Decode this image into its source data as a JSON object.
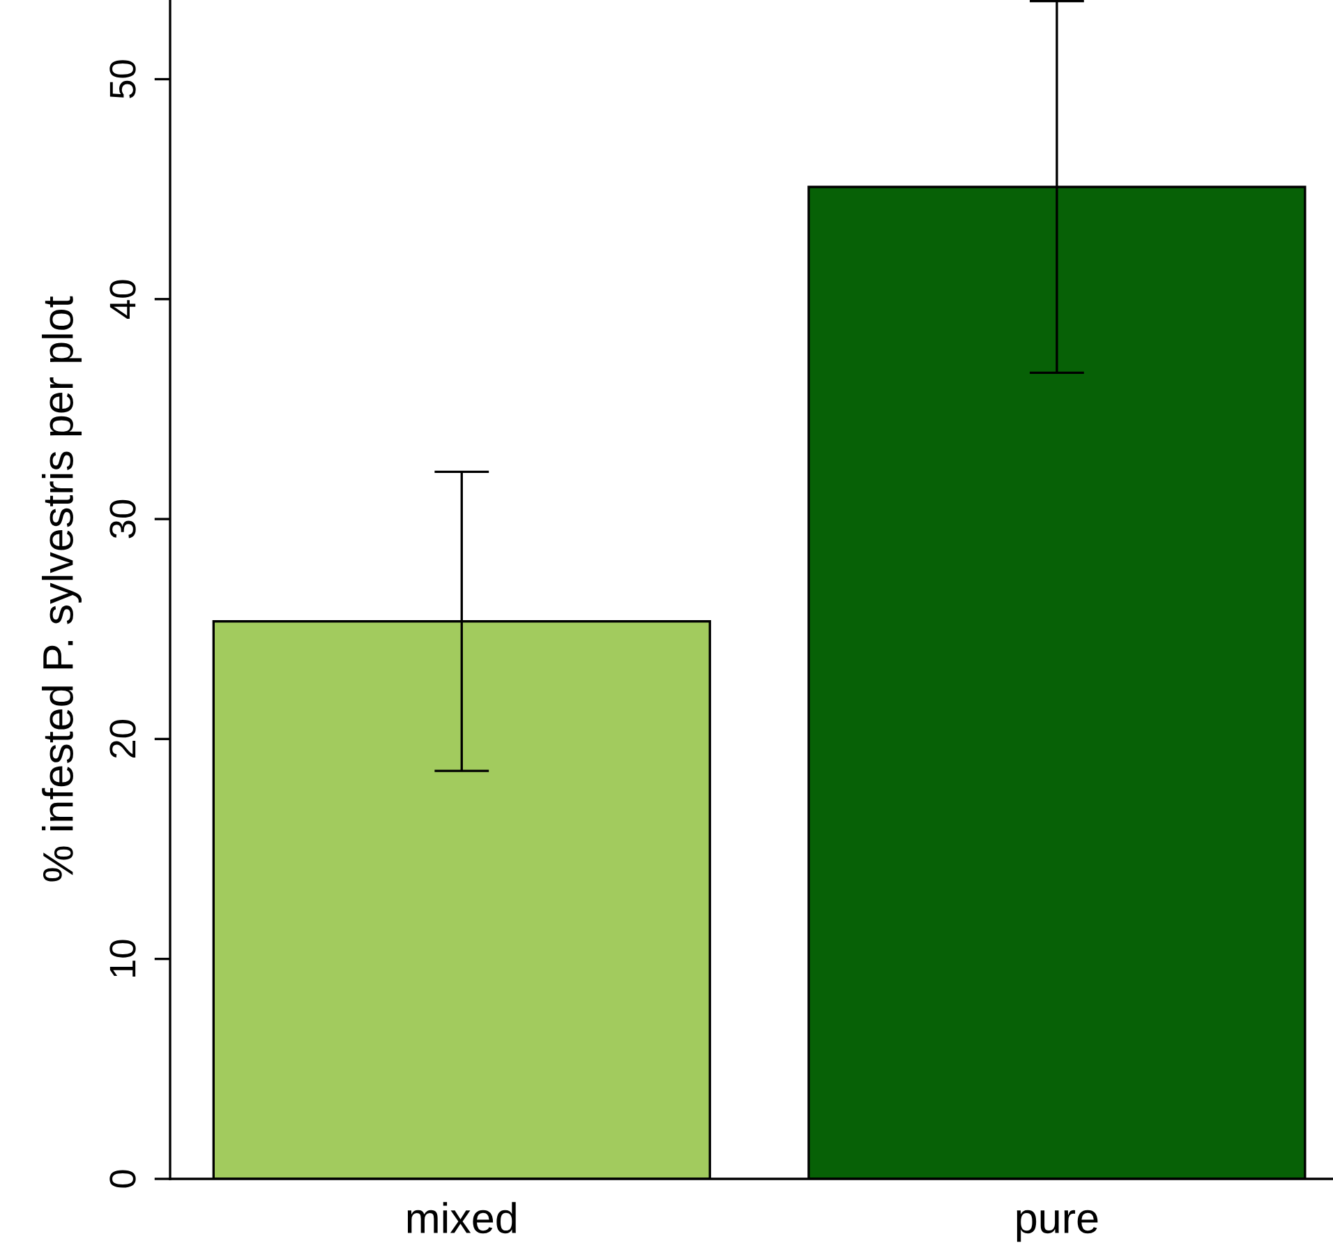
{
  "chart_data": {
    "type": "bar",
    "ylabel": "% infested P. sylvestris per plot",
    "categories": [
      "mixed",
      "pure"
    ],
    "values": [
      25.35,
      45.1
    ],
    "errors": [
      6.8,
      8.45
    ],
    "colors": [
      "#a2cb5e",
      "#076106"
    ],
    "ylim": [
      0,
      53.6
    ],
    "yticks": [
      0,
      10,
      20,
      30,
      40,
      50
    ],
    "grid": false,
    "legend": false
  }
}
